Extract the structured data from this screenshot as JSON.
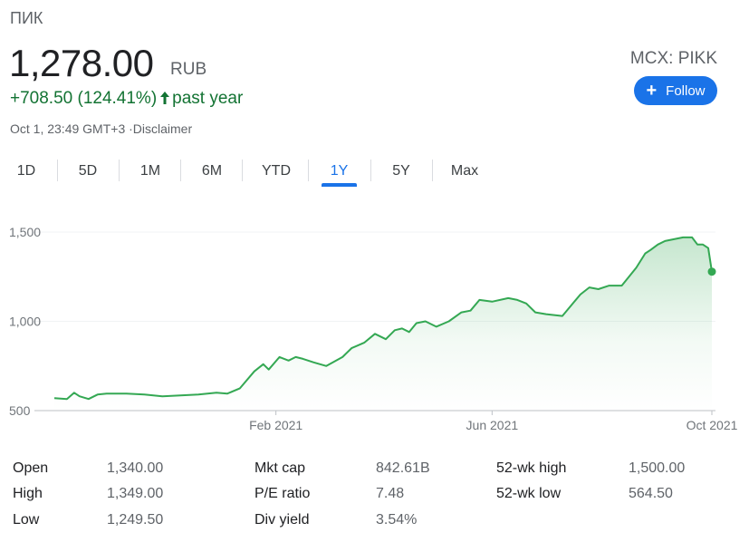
{
  "header": {
    "company": "ПИК",
    "price": "1,278.00",
    "currency": "RUB",
    "change": "+708.50 (124.41%)",
    "change_period": "past year",
    "timestamp": "Oct 1, 23:49 GMT+3 ·Disclaimer",
    "ticker": "MCX: PIKK",
    "follow_label": "Follow"
  },
  "colors": {
    "positive": "#137333",
    "line": "#34a853",
    "accent": "#1a73e8"
  },
  "tabs": [
    "1D",
    "5D",
    "1M",
    "6M",
    "YTD",
    "1Y",
    "5Y",
    "Max"
  ],
  "active_tab": "1Y",
  "chart_data": {
    "type": "area",
    "ylim": [
      500,
      1500
    ],
    "y_ticks": [
      500,
      1000,
      1500
    ],
    "y_tick_labels": [
      "500",
      "1,000",
      "1,500"
    ],
    "x_ticks": [
      "2021-02-01",
      "2021-06-01",
      "2021-10-01"
    ],
    "x_tick_labels": [
      "Feb 2021",
      "Jun 2021",
      "Oct 2021"
    ],
    "grid": true,
    "series": [
      {
        "x": [
          "2020-10-01",
          "2020-10-08",
          "2020-10-12",
          "2020-10-15",
          "2020-10-20",
          "2020-10-25",
          "2020-10-30",
          "2020-11-05",
          "2020-11-10",
          "2020-11-20",
          "2020-11-30",
          "2020-12-10",
          "2020-12-20",
          "2020-12-30",
          "2021-01-05",
          "2021-01-12",
          "2021-01-20",
          "2021-01-25",
          "2021-01-28",
          "2021-02-03",
          "2021-02-08",
          "2021-02-12",
          "2021-02-16",
          "2021-02-22",
          "2021-03-01",
          "2021-03-10",
          "2021-03-15",
          "2021-03-22",
          "2021-03-28",
          "2021-04-03",
          "2021-04-08",
          "2021-04-12",
          "2021-04-16",
          "2021-04-20",
          "2021-04-25",
          "2021-05-01",
          "2021-05-08",
          "2021-05-15",
          "2021-05-20",
          "2021-05-25",
          "2021-06-01",
          "2021-06-10",
          "2021-06-15",
          "2021-06-20",
          "2021-06-25",
          "2021-07-01",
          "2021-07-10",
          "2021-07-20",
          "2021-07-25",
          "2021-07-30",
          "2021-08-05",
          "2021-08-12",
          "2021-08-20",
          "2021-08-25",
          "2021-08-28",
          "2021-09-01",
          "2021-09-05",
          "2021-09-10",
          "2021-09-15",
          "2021-09-20",
          "2021-09-23",
          "2021-09-26",
          "2021-09-29",
          "2021-10-01"
        ],
        "y": [
          570,
          565,
          600,
          580,
          565,
          590,
          595,
          595,
          595,
          590,
          580,
          585,
          590,
          600,
          595,
          625,
          720,
          760,
          730,
          800,
          780,
          800,
          790,
          770,
          750,
          800,
          850,
          880,
          930,
          900,
          950,
          960,
          940,
          990,
          1000,
          970,
          1000,
          1050,
          1060,
          1120,
          1110,
          1130,
          1120,
          1100,
          1050,
          1040,
          1030,
          1150,
          1190,
          1180,
          1200,
          1200,
          1300,
          1380,
          1400,
          1430,
          1450,
          1460,
          1470,
          1470,
          1430,
          1430,
          1410,
          1278
        ],
        "last_value": 1278
      }
    ]
  },
  "stats": [
    {
      "label": "Open",
      "value": "1,340.00"
    },
    {
      "label": "High",
      "value": "1,349.00"
    },
    {
      "label": "Low",
      "value": "1,249.50"
    },
    {
      "label": "Mkt cap",
      "value": "842.61B"
    },
    {
      "label": "P/E ratio",
      "value": "7.48"
    },
    {
      "label": "Div yield",
      "value": "3.54%"
    },
    {
      "label": "52-wk high",
      "value": "1,500.00"
    },
    {
      "label": "52-wk low",
      "value": "564.50"
    }
  ]
}
